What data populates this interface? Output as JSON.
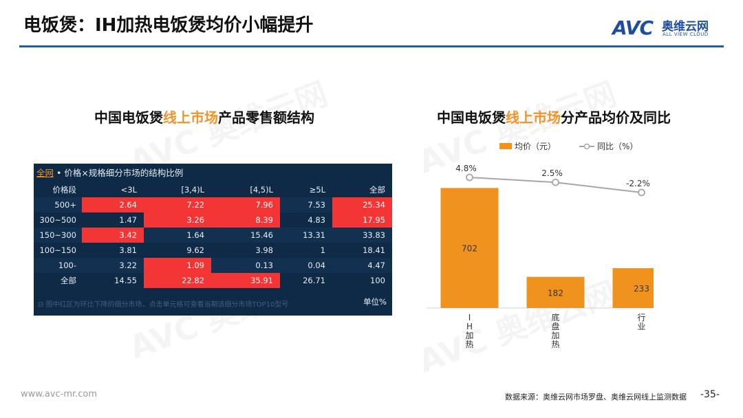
{
  "header": {
    "title": "电饭煲：IH加热电饭煲均价小幅提升",
    "logo_mark": "AVC",
    "logo_cn": "奥维云网",
    "logo_en": "ALL VIEW CLOUD"
  },
  "left": {
    "subtitle_pre": "中国电饭煲",
    "subtitle_hl": "线上市场",
    "subtitle_post": "产品零售额结构",
    "table_head_link": "全网",
    "table_head_text": " • 价格×规格细分市场的结构比例",
    "table_note": "图中红区为环比下降的细分市场，点击单元格可查看当期该细分市场TOP10型号",
    "unit": "单位%"
  },
  "right": {
    "subtitle_pre": "中国电饭煲",
    "subtitle_hl": "线上市场",
    "subtitle_post": "分产品均价及同比"
  },
  "chart_data": [
    {
      "type": "table",
      "columns": [
        "价格段",
        "<3L",
        "[3,4)L",
        "[4,5)L",
        "≥5L",
        "全部"
      ],
      "rows": [
        [
          "500+",
          "2.64",
          "7.22",
          "7.96",
          "7.53",
          "25.34"
        ],
        [
          "300~500",
          "1.47",
          "3.26",
          "8.39",
          "4.83",
          "17.95"
        ],
        [
          "150~300",
          "3.42",
          "1.64",
          "15.46",
          "13.31",
          "33.83"
        ],
        [
          "100~150",
          "3.81",
          "9.62",
          "3.98",
          "1",
          "18.41"
        ],
        [
          "100-",
          "3.22",
          "1.09",
          "0.13",
          "0.04",
          "4.47"
        ],
        [
          "全部",
          "14.55",
          "22.82",
          "35.91",
          "26.71",
          "100"
        ]
      ],
      "highlight_red": [
        [
          true,
          true,
          true,
          false,
          true
        ],
        [
          false,
          true,
          true,
          false,
          true
        ],
        [
          true,
          false,
          false,
          false,
          false
        ],
        [
          false,
          false,
          false,
          false,
          false
        ],
        [
          false,
          true,
          false,
          false,
          false
        ],
        [
          false,
          true,
          true,
          false,
          false
        ]
      ],
      "highlight_color": "#f43535"
    },
    {
      "type": "bar",
      "categories": [
        "IH加热",
        "底盘加热",
        "行业"
      ],
      "series": [
        {
          "name": "均价（元）",
          "type": "bar",
          "values": [
            702,
            182,
            233
          ],
          "color": "#f0931e"
        },
        {
          "name": "同比（%）",
          "type": "line",
          "values": [
            4.8,
            2.5,
            -2.2
          ],
          "labels": [
            "4.8%",
            "2.5%",
            "-2.2%"
          ],
          "color": "#a6a6a6"
        }
      ],
      "ylim": [
        0,
        800
      ],
      "legend": "top",
      "grid": false
    }
  ],
  "footer": {
    "url": "www.avc-mr.com",
    "source": "数据来源：奥维云网市场罗盘、奥维云网线上监测数据",
    "page": "-35-"
  }
}
